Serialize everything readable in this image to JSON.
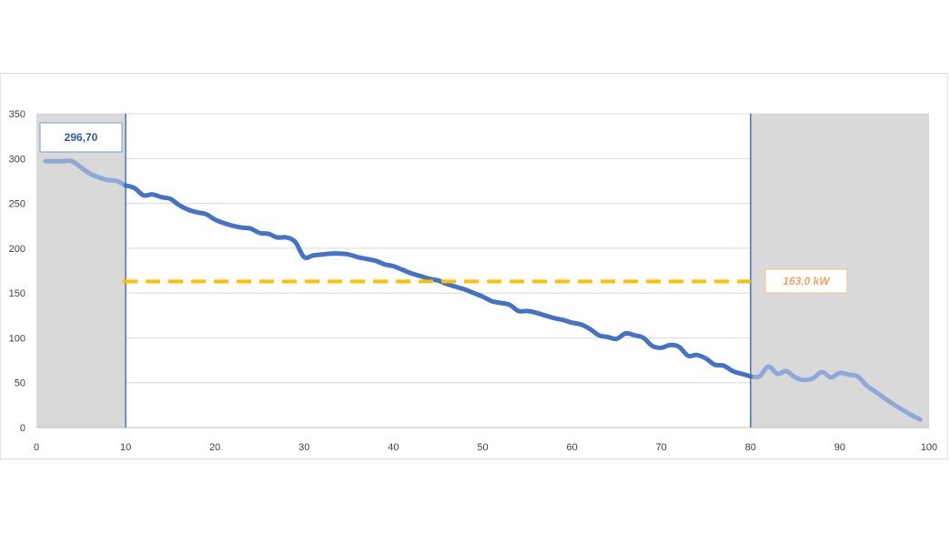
{
  "chart_data": {
    "type": "line",
    "xlim": [
      0,
      100
    ],
    "ylim": [
      0,
      350
    ],
    "x_ticks": [
      "0",
      "10",
      "20",
      "30",
      "40",
      "50",
      "60",
      "70",
      "80",
      "90",
      "100"
    ],
    "y_ticks": [
      "0",
      "50",
      "100",
      "150",
      "200",
      "250",
      "300",
      "350"
    ],
    "grid": "horizontal",
    "shaded_ranges": [
      [
        0,
        10
      ],
      [
        80,
        100
      ]
    ],
    "vertical_markers": [
      10,
      80
    ],
    "series": [
      {
        "x": [
          1,
          2,
          3,
          4,
          5,
          6,
          7,
          8,
          9,
          10,
          11,
          12,
          13,
          14,
          15,
          16,
          17,
          18,
          19,
          20,
          21,
          22,
          23,
          24,
          25,
          26,
          27,
          28,
          29,
          30,
          31,
          32,
          33,
          34,
          35,
          36,
          37,
          38,
          39,
          40,
          41,
          42,
          43,
          44,
          45,
          46,
          47,
          48,
          49,
          50,
          51,
          52,
          53,
          54,
          55,
          56,
          57,
          58,
          59,
          60,
          61,
          62,
          63,
          64,
          65,
          66,
          67,
          68,
          69,
          70,
          71,
          72,
          73,
          74,
          75,
          76,
          77,
          78,
          79,
          80,
          81,
          82,
          83,
          84,
          85,
          86,
          87,
          88,
          89,
          90,
          91,
          92,
          93,
          94,
          95,
          96,
          97,
          98,
          99
        ],
        "y": [
          297,
          297,
          297,
          297,
          290,
          283,
          279,
          276,
          275,
          270,
          267,
          259,
          260,
          257,
          255,
          248,
          243,
          240,
          238,
          232,
          228,
          225,
          223,
          222,
          217,
          216,
          212,
          212,
          207,
          190,
          192,
          193,
          194,
          194,
          193,
          190,
          188,
          186,
          182,
          180,
          176,
          172,
          169,
          166,
          164,
          160,
          157,
          154,
          150,
          146,
          141,
          139,
          137,
          130,
          130,
          128,
          125,
          122,
          120,
          117,
          115,
          110,
          103,
          101,
          99,
          105,
          103,
          100,
          91,
          89,
          92,
          90,
          80,
          81,
          77,
          70,
          69,
          63,
          60,
          57,
          57,
          68,
          60,
          63,
          56,
          53,
          55,
          62,
          56,
          61,
          59,
          57,
          47,
          40,
          33,
          26,
          20,
          14,
          9
        ],
        "color": "#4472C4",
        "muted_color": "#8FA8D8"
      }
    ],
    "annotations": [
      {
        "text": "296,70",
        "color": "#2E5E9E"
      },
      {
        "text": "163,0 kW",
        "color": "#F4A460",
        "value": 163,
        "x_range": [
          10,
          80
        ]
      }
    ],
    "colors": {
      "marker_line": "#4472C4",
      "threshold": "#FFC000",
      "shade": "#D9D9D9",
      "grid": "#D9D9D9"
    }
  }
}
